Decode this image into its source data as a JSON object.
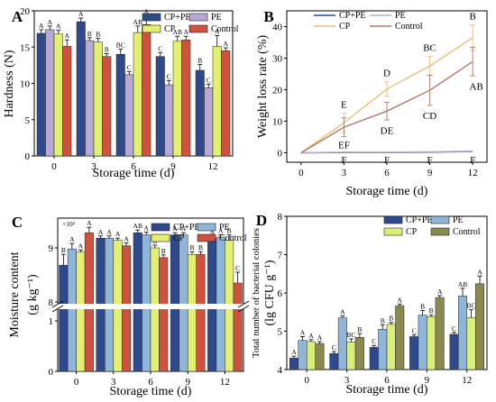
{
  "chart_data": [
    {
      "panel": "A",
      "type": "bar",
      "xlabel": "Storage time (d)",
      "ylabel": "Hardness (N)",
      "ylim": [
        0,
        20
      ],
      "yticks": [
        0,
        5,
        10,
        15,
        20
      ],
      "categories": [
        "0",
        "3",
        "6",
        "9",
        "12"
      ],
      "series": [
        {
          "name": "CP+PE",
          "color": "#2e4a8c",
          "values": [
            16.9,
            18.5,
            14.0,
            13.7,
            11.8
          ],
          "errors": [
            0.5,
            0.5,
            0.7,
            0.5,
            0.8
          ],
          "letters": [
            "A",
            "A",
            "BC",
            "C",
            "B"
          ]
        },
        {
          "name": "PE",
          "color": "#b6a9d6",
          "values": [
            17.4,
            15.9,
            11.2,
            9.8,
            9.4
          ],
          "errors": [
            0.5,
            0.4,
            0.4,
            0.6,
            0.5
          ],
          "letters": [
            "A",
            "B",
            "C",
            "C",
            "C"
          ]
        },
        {
          "name": "CP",
          "color": "#e3ef71",
          "values": [
            16.8,
            15.7,
            17.0,
            15.8,
            15.1
          ],
          "errors": [
            0.5,
            0.5,
            0.9,
            0.7,
            1.5
          ],
          "letters": [
            "A",
            "B",
            "AB",
            "AB",
            "A"
          ]
        },
        {
          "name": "Control",
          "color": "#cf5241",
          "values": [
            15.1,
            13.7,
            18.1,
            16.0,
            14.5
          ],
          "errors": [
            0.9,
            0.4,
            1.2,
            0.5,
            0.4
          ],
          "letters": [
            "A",
            "B",
            "A",
            "A",
            "A"
          ]
        }
      ],
      "legend": "top"
    },
    {
      "panel": "B",
      "type": "line",
      "xlabel": "Storage time (d)",
      "ylabel": "Weight loss rate (%)",
      "x": [
        0,
        3,
        6,
        9,
        12
      ],
      "xlim": [
        -1,
        13
      ],
      "ylim": [
        -3,
        45
      ],
      "xticks": [
        0,
        3,
        6,
        9,
        12
      ],
      "yticks": [
        0,
        10,
        20,
        30,
        40
      ],
      "series": [
        {
          "name": "CP+PE",
          "color": "#2e4a8c",
          "values": [
            0,
            0.1,
            0.1,
            0.2,
            0.4
          ],
          "errors": [
            0,
            0.1,
            0.1,
            0.1,
            0.2
          ],
          "letters": [
            "",
            "F",
            "F",
            "F",
            "F"
          ]
        },
        {
          "name": "PE",
          "color": "#b6a9d6",
          "values": [
            0,
            0.2,
            0.2,
            0.3,
            0.5
          ],
          "errors": [
            0,
            0,
            0,
            0,
            0
          ],
          "letters": [
            "",
            "EF",
            "",
            "",
            ""
          ]
        },
        {
          "name": "CP",
          "color": "#e8c07a",
          "values": [
            0,
            9.5,
            20.2,
            27.5,
            36.5
          ],
          "errors": [
            0,
            3.0,
            2.3,
            3.0,
            4.0
          ],
          "letters": [
            "",
            "E",
            "D",
            "BC",
            "B"
          ]
        },
        {
          "name": "Control",
          "color": "#b07a68",
          "values": [
            0,
            8.1,
            13.2,
            19.8,
            28.9
          ],
          "errors": [
            0,
            3.0,
            2.8,
            4.8,
            4.5
          ],
          "letters": [
            "",
            "",
            "DE",
            "CD",
            "AB"
          ]
        }
      ],
      "legend": "top"
    },
    {
      "panel": "C",
      "type": "bar",
      "xlabel": "Storage time (d)",
      "ylabel": "Moisture content",
      "ylabel2": "(g kg⁻¹)",
      "y_multiplier_label": "×10²",
      "axis_break": true,
      "yticks": [
        0,
        1,
        8,
        9
      ],
      "categories": [
        "0",
        "3",
        "6",
        "9",
        "12"
      ],
      "series": [
        {
          "name": "CP+PE",
          "color": "#2e4a8c",
          "values": [
            8.68,
            9.18,
            9.28,
            9.24,
            9.17
          ],
          "errors": [
            0.2,
            0.04,
            0.05,
            0.04,
            0.05
          ],
          "letters": [
            "B",
            "A",
            "AB",
            "A",
            "A"
          ]
        },
        {
          "name": "PE",
          "color": "#8fb5d9",
          "values": [
            8.98,
            9.18,
            9.24,
            9.24,
            9.2
          ],
          "errors": [
            0.1,
            0.04,
            0.05,
            0.04,
            0.04
          ],
          "letters": [
            "A",
            "A",
            "A",
            "A",
            "A"
          ]
        },
        {
          "name": "CP",
          "color": "#e3ef71",
          "values": [
            8.92,
            9.14,
            9.0,
            8.88,
            9.14
          ],
          "errors": [
            0.04,
            0.04,
            0.05,
            0.05,
            0.1
          ],
          "letters": [
            "A",
            "A",
            "B",
            "B",
            "B"
          ]
        },
        {
          "name": "Control",
          "color": "#cf5241",
          "values": [
            9.28,
            9.04,
            8.82,
            8.88,
            8.35
          ],
          "errors": [
            0.1,
            0.05,
            0.05,
            0.05,
            0.2
          ],
          "letters": [
            "A",
            "A",
            "B",
            "B",
            "C"
          ]
        }
      ],
      "legend": "top"
    },
    {
      "panel": "D",
      "type": "bar",
      "xlabel": "Storage time (d)",
      "ylabel": "Total number of bacterial colonies",
      "ylabel2": "(lg CFU g⁻¹)",
      "ylim": [
        4,
        8
      ],
      "yticks": [
        4,
        5,
        6,
        7,
        8
      ],
      "categories": [
        "0",
        "3",
        "6",
        "9",
        "12"
      ],
      "series": [
        {
          "name": "CP+PE",
          "color": "#2e4a8c",
          "values": [
            4.3,
            4.42,
            4.58,
            4.86,
            4.92
          ],
          "errors": [
            0.05,
            0.05,
            0.05,
            0.05,
            0.05
          ],
          "letters": [
            "A",
            "C",
            "C",
            "C",
            "C"
          ]
        },
        {
          "name": "PE",
          "color": "#8fb5d9",
          "values": [
            4.76,
            5.35,
            5.05,
            5.42,
            5.92
          ],
          "errors": [
            0.1,
            0.05,
            0.12,
            0.12,
            0.2
          ],
          "letters": [
            "A",
            "A",
            "B",
            "B",
            "AB"
          ]
        },
        {
          "name": "CP",
          "color": "#d8f07a",
          "values": [
            4.73,
            4.72,
            5.18,
            5.38,
            5.36
          ],
          "errors": [
            0.05,
            0.08,
            0.05,
            0.05,
            0.2
          ],
          "letters": [
            "A",
            "BC",
            "B",
            "B",
            "BC"
          ]
        },
        {
          "name": "Control",
          "color": "#8b8a4e",
          "values": [
            4.68,
            4.84,
            5.66,
            5.88,
            6.24
          ],
          "errors": [
            0.05,
            0.1,
            0.05,
            0.05,
            0.2
          ],
          "letters": [
            "A",
            "B",
            "A",
            "A",
            "A"
          ]
        }
      ],
      "legend": "top"
    }
  ]
}
